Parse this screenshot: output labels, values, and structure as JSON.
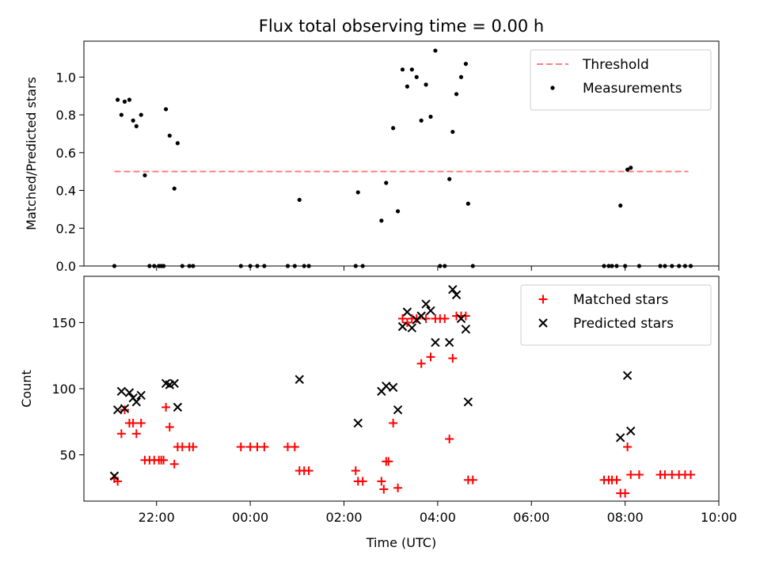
{
  "chart_data": {
    "title": "Flux total observing time = 0.00 h",
    "xlabel": "Time (UTC)",
    "x_unit": "hours (UTC)",
    "xlim": [
      -3.55,
      10.0
    ],
    "x_ticks": [
      {
        "value": -2,
        "label": "22:00"
      },
      {
        "value": 0,
        "label": "00:00"
      },
      {
        "value": 2,
        "label": "02:00"
      },
      {
        "value": 4,
        "label": "04:00"
      },
      {
        "value": 6,
        "label": "06:00"
      },
      {
        "value": 8,
        "label": "08:00"
      },
      {
        "value": 10,
        "label": "10:00"
      }
    ],
    "panels": [
      {
        "type": "scatter",
        "ylabel": "Matched/Predicted stars",
        "ylim": [
          0,
          1.19
        ],
        "y_ticks": [
          0.0,
          0.2,
          0.4,
          0.6,
          0.8,
          1.0
        ],
        "y_tick_labels": [
          "0.0",
          "0.2",
          "0.4",
          "0.6",
          "0.8",
          "1.0"
        ],
        "legend": "top-right",
        "threshold": {
          "name": "Threshold",
          "value": 0.5,
          "x_range": [
            -2.9,
            9.35
          ],
          "color": "#ff7f7f"
        },
        "series": [
          {
            "name": "Measurements",
            "marker": "dot",
            "color": "#000000",
            "points": [
              [
                -2.9,
                0.0
              ],
              [
                -2.83,
                0.88
              ],
              [
                -2.75,
                0.8
              ],
              [
                -2.68,
                0.87
              ],
              [
                -2.58,
                0.88
              ],
              [
                -2.5,
                0.77
              ],
              [
                -2.43,
                0.74
              ],
              [
                -2.33,
                0.8
              ],
              [
                -2.25,
                0.48
              ],
              [
                -2.15,
                0.0
              ],
              [
                -2.05,
                0.0
              ],
              [
                -1.95,
                0.0
              ],
              [
                -1.9,
                0.0
              ],
              [
                -1.85,
                0.0
              ],
              [
                -1.8,
                0.83
              ],
              [
                -1.72,
                0.69
              ],
              [
                -1.62,
                0.41
              ],
              [
                -1.55,
                0.65
              ],
              [
                -1.45,
                0.0
              ],
              [
                -1.3,
                0.0
              ],
              [
                -1.22,
                0.0
              ],
              [
                -0.2,
                0.0
              ],
              [
                0.0,
                0.0
              ],
              [
                0.15,
                0.0
              ],
              [
                0.3,
                0.0
              ],
              [
                0.8,
                0.0
              ],
              [
                0.95,
                0.0
              ],
              [
                1.05,
                0.35
              ],
              [
                1.15,
                0.0
              ],
              [
                1.25,
                0.0
              ],
              [
                2.25,
                0.0
              ],
              [
                2.3,
                0.39
              ],
              [
                2.4,
                0.0
              ],
              [
                2.8,
                0.24
              ],
              [
                2.9,
                0.44
              ],
              [
                3.05,
                0.73
              ],
              [
                3.15,
                0.29
              ],
              [
                3.25,
                1.04
              ],
              [
                3.35,
                0.95
              ],
              [
                3.45,
                1.04
              ],
              [
                3.55,
                1.0
              ],
              [
                3.65,
                0.77
              ],
              [
                3.75,
                0.96
              ],
              [
                3.85,
                0.79
              ],
              [
                3.95,
                1.14
              ],
              [
                4.05,
                0.0
              ],
              [
                4.15,
                0.0
              ],
              [
                4.25,
                0.46
              ],
              [
                4.32,
                0.71
              ],
              [
                4.4,
                0.91
              ],
              [
                4.5,
                1.0
              ],
              [
                4.6,
                1.07
              ],
              [
                4.65,
                0.33
              ],
              [
                4.75,
                0.0
              ],
              [
                7.55,
                0.0
              ],
              [
                7.65,
                0.0
              ],
              [
                7.72,
                0.0
              ],
              [
                7.82,
                0.0
              ],
              [
                7.9,
                0.32
              ],
              [
                8.0,
                0.0
              ],
              [
                8.05,
                0.51
              ],
              [
                8.12,
                0.52
              ],
              [
                8.3,
                0.0
              ],
              [
                8.75,
                0.0
              ],
              [
                8.85,
                0.0
              ],
              [
                9.0,
                0.0
              ],
              [
                9.15,
                0.0
              ],
              [
                9.28,
                0.0
              ],
              [
                9.4,
                0.0
              ]
            ]
          }
        ]
      },
      {
        "type": "scatter",
        "ylabel": "Count",
        "ylim": [
          15,
          185
        ],
        "y_ticks": [
          50,
          100,
          150
        ],
        "y_tick_labels": [
          "50",
          "100",
          "150"
        ],
        "legend": "top-right",
        "series": [
          {
            "name": "Matched stars",
            "marker": "plus",
            "color": "#ff0000",
            "points": [
              [
                -2.9,
                32
              ],
              [
                -2.83,
                30
              ],
              [
                -2.75,
                66
              ],
              [
                -2.68,
                84
              ],
              [
                -2.58,
                74
              ],
              [
                -2.5,
                74
              ],
              [
                -2.43,
                66
              ],
              [
                -2.33,
                74
              ],
              [
                -2.25,
                46
              ],
              [
                -2.15,
                46
              ],
              [
                -2.05,
                46
              ],
              [
                -1.95,
                46
              ],
              [
                -1.9,
                46
              ],
              [
                -1.85,
                46
              ],
              [
                -1.8,
                86
              ],
              [
                -1.72,
                71
              ],
              [
                -1.62,
                43
              ],
              [
                -1.55,
                56
              ],
              [
                -1.45,
                56
              ],
              [
                -1.3,
                56
              ],
              [
                -1.22,
                56
              ],
              [
                -0.2,
                56
              ],
              [
                0.0,
                56
              ],
              [
                0.15,
                56
              ],
              [
                0.3,
                56
              ],
              [
                0.8,
                56
              ],
              [
                0.95,
                56
              ],
              [
                1.05,
                38
              ],
              [
                1.15,
                38
              ],
              [
                1.25,
                38
              ],
              [
                2.25,
                38
              ],
              [
                2.3,
                30
              ],
              [
                2.4,
                30
              ],
              [
                2.8,
                30
              ],
              [
                2.85,
                24
              ],
              [
                2.9,
                45
              ],
              [
                2.95,
                45
              ],
              [
                3.05,
                74
              ],
              [
                3.15,
                25
              ],
              [
                3.25,
                153
              ],
              [
                3.35,
                150
              ],
              [
                3.45,
                153
              ],
              [
                3.55,
                153
              ],
              [
                3.65,
                119
              ],
              [
                3.75,
                153
              ],
              [
                3.85,
                124
              ],
              [
                3.95,
                153
              ],
              [
                4.05,
                153
              ],
              [
                4.15,
                153
              ],
              [
                4.25,
                62
              ],
              [
                4.32,
                123
              ],
              [
                4.4,
                155
              ],
              [
                4.5,
                155
              ],
              [
                4.6,
                155
              ],
              [
                4.65,
                31
              ],
              [
                4.75,
                31
              ],
              [
                7.55,
                31
              ],
              [
                7.65,
                31
              ],
              [
                7.72,
                31
              ],
              [
                7.82,
                31
              ],
              [
                7.9,
                21
              ],
              [
                8.0,
                21
              ],
              [
                8.05,
                56
              ],
              [
                8.12,
                35
              ],
              [
                8.3,
                35
              ],
              [
                8.75,
                35
              ],
              [
                8.85,
                35
              ],
              [
                9.0,
                35
              ],
              [
                9.15,
                35
              ],
              [
                9.28,
                35
              ],
              [
                9.4,
                35
              ]
            ]
          },
          {
            "name": "Predicted stars",
            "marker": "x",
            "color": "#000000",
            "points": [
              [
                -2.9,
                34
              ],
              [
                -2.83,
                84
              ],
              [
                -2.75,
                98
              ],
              [
                -2.68,
                85
              ],
              [
                -2.58,
                97
              ],
              [
                -2.5,
                93
              ],
              [
                -2.43,
                90
              ],
              [
                -2.33,
                95
              ],
              [
                -1.8,
                104
              ],
              [
                -1.72,
                103
              ],
              [
                -1.62,
                104
              ],
              [
                -1.55,
                86
              ],
              [
                1.05,
                107
              ],
              [
                2.3,
                74
              ],
              [
                2.8,
                98
              ],
              [
                2.9,
                102
              ],
              [
                3.05,
                101
              ],
              [
                3.15,
                84
              ],
              [
                3.25,
                147
              ],
              [
                3.35,
                158
              ],
              [
                3.45,
                146
              ],
              [
                3.55,
                152
              ],
              [
                3.65,
                155
              ],
              [
                3.75,
                164
              ],
              [
                3.85,
                159
              ],
              [
                3.95,
                135
              ],
              [
                4.25,
                135
              ],
              [
                4.32,
                175
              ],
              [
                4.4,
                171
              ],
              [
                4.5,
                153
              ],
              [
                4.6,
                145
              ],
              [
                4.65,
                90
              ],
              [
                7.9,
                63
              ],
              [
                8.05,
                110
              ],
              [
                8.12,
                68
              ]
            ]
          }
        ]
      }
    ]
  }
}
